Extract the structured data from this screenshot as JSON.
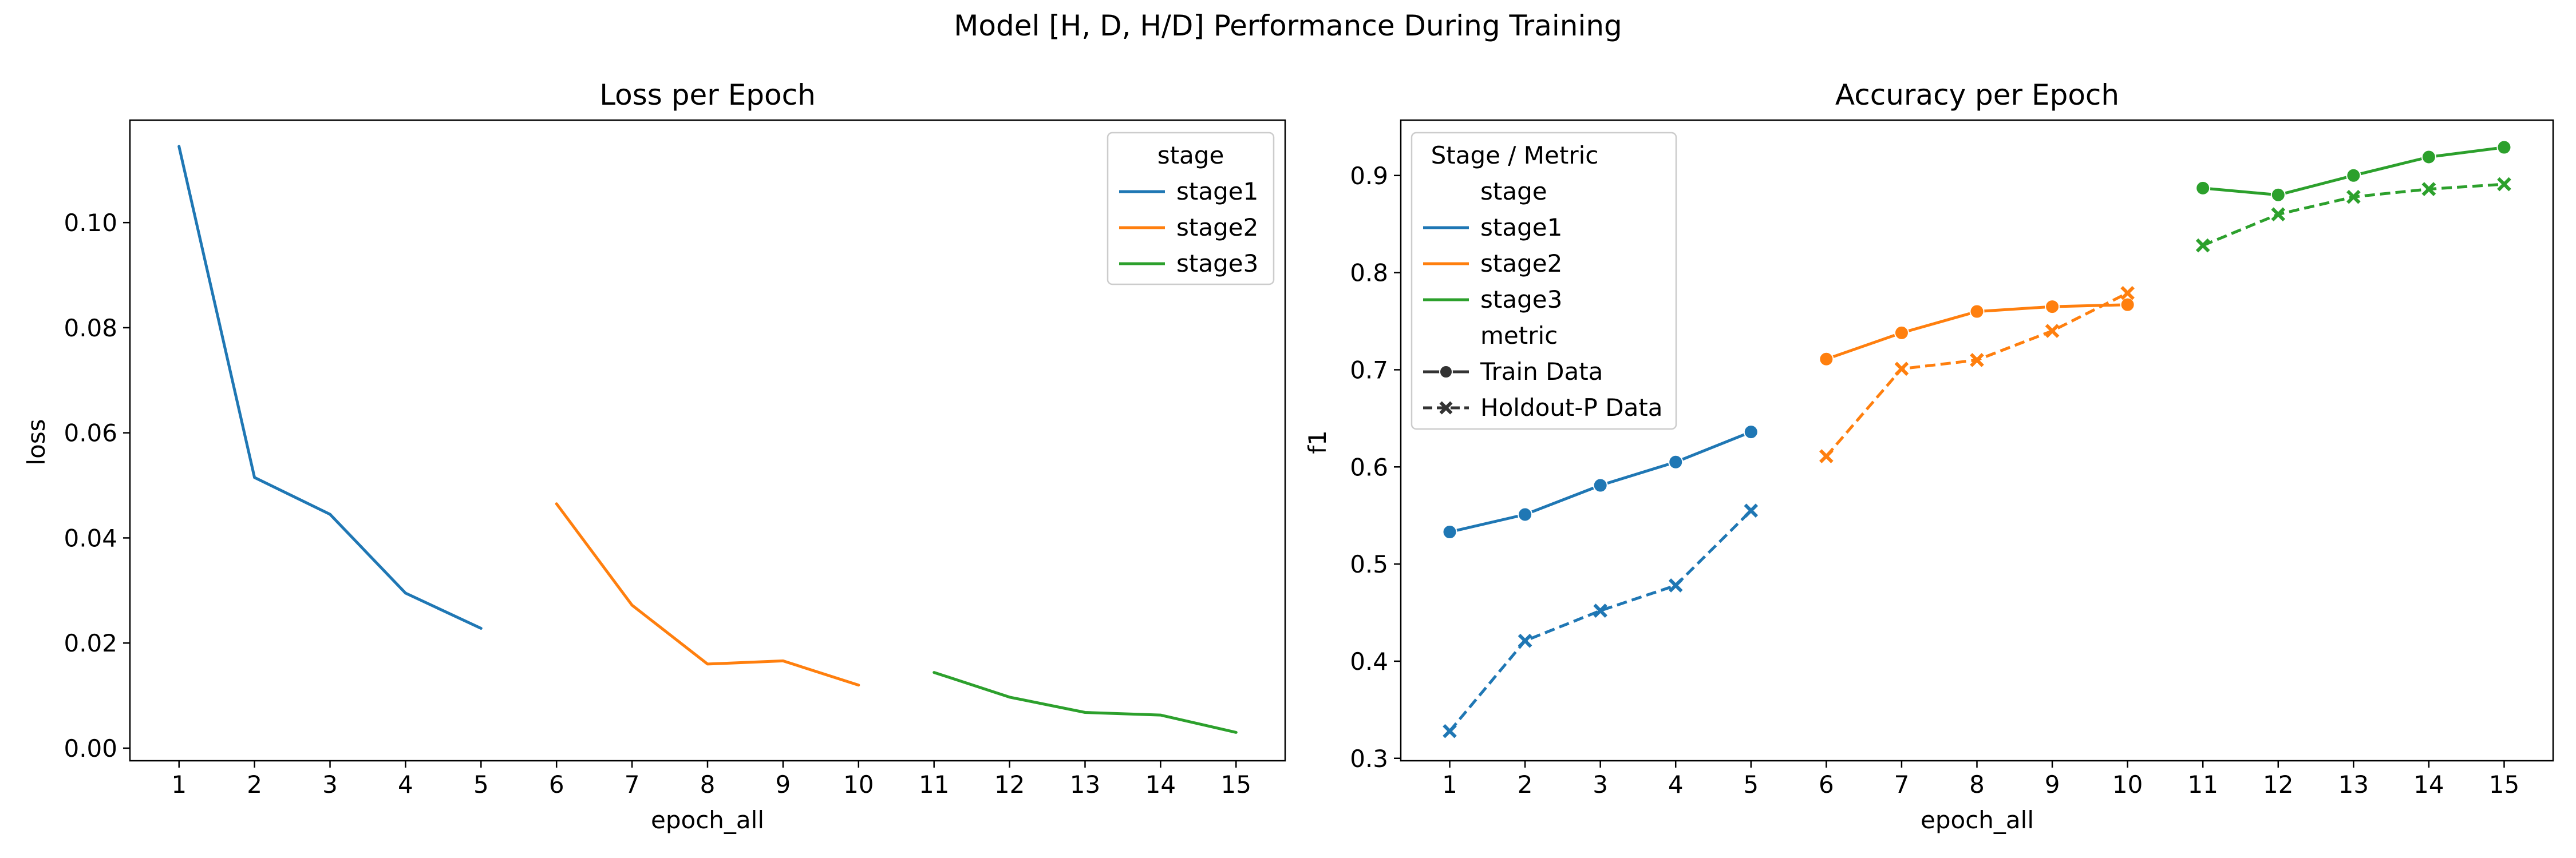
{
  "suptitle": "Model [H, D, H/D] Performance During Training",
  "colors": {
    "stage1": "#1f77b4",
    "stage2": "#ff7f0e",
    "stage3": "#2ca02c"
  },
  "chart_data": [
    {
      "type": "line",
      "title": "Loss per Epoch",
      "xlabel": "epoch_all",
      "ylabel": "loss",
      "xlim": [
        0.35,
        15.65
      ],
      "ylim": [
        -0.0024,
        0.1195
      ],
      "xticks": [
        "1",
        "2",
        "3",
        "4",
        "5",
        "6",
        "7",
        "8",
        "9",
        "10",
        "11",
        "12",
        "13",
        "14",
        "15"
      ],
      "yticks": [
        "0.00",
        "0.02",
        "0.04",
        "0.06",
        "0.08",
        "0.10"
      ],
      "grid": false,
      "legend": {
        "position": "top-right",
        "title": "stage",
        "entries": [
          "stage1",
          "stage2",
          "stage3"
        ]
      },
      "series": [
        {
          "name": "stage1",
          "color": "#1f77b4",
          "x": [
            1,
            2,
            3,
            4,
            5
          ],
          "y": [
            0.1145,
            0.0515,
            0.0445,
            0.0295,
            0.0228
          ]
        },
        {
          "name": "stage2",
          "color": "#ff7f0e",
          "x": [
            6,
            7,
            8,
            9,
            10
          ],
          "y": [
            0.0465,
            0.0272,
            0.016,
            0.0166,
            0.012
          ]
        },
        {
          "name": "stage3",
          "color": "#2ca02c",
          "x": [
            11,
            12,
            13,
            14,
            15
          ],
          "y": [
            0.0144,
            0.0097,
            0.0068,
            0.0063,
            0.003
          ]
        }
      ]
    },
    {
      "type": "line",
      "title": "Accuracy per Epoch",
      "xlabel": "epoch_all",
      "ylabel": "f1",
      "xlim": [
        0.35,
        15.65
      ],
      "ylim": [
        0.2975,
        0.957
      ],
      "xticks": [
        "1",
        "2",
        "3",
        "4",
        "5",
        "6",
        "7",
        "8",
        "9",
        "10",
        "11",
        "12",
        "13",
        "14",
        "15"
      ],
      "yticks": [
        "0.3",
        "0.4",
        "0.5",
        "0.6",
        "0.7",
        "0.8",
        "0.9"
      ],
      "grid": false,
      "legend": {
        "position": "top-left",
        "title": "Stage / Metric",
        "entries": [
          "stage",
          "stage1",
          "stage2",
          "stage3",
          "metric",
          "Train Data",
          "Holdout-P Data"
        ]
      },
      "series": [
        {
          "name": "stage1",
          "metric": "Train Data",
          "color": "#1f77b4",
          "marker": "circle",
          "dashed": false,
          "x": [
            1,
            2,
            3,
            4,
            5
          ],
          "y": [
            0.533,
            0.551,
            0.581,
            0.605,
            0.636
          ]
        },
        {
          "name": "stage1",
          "metric": "Holdout-P Data",
          "color": "#1f77b4",
          "marker": "x",
          "dashed": true,
          "x": [
            1,
            2,
            3,
            4,
            5
          ],
          "y": [
            0.328,
            0.421,
            0.452,
            0.478,
            0.555
          ]
        },
        {
          "name": "stage2",
          "metric": "Train Data",
          "color": "#ff7f0e",
          "marker": "circle",
          "dashed": false,
          "x": [
            6,
            7,
            8,
            9,
            10
          ],
          "y": [
            0.711,
            0.738,
            0.76,
            0.765,
            0.767
          ]
        },
        {
          "name": "stage2",
          "metric": "Holdout-P Data",
          "color": "#ff7f0e",
          "marker": "x",
          "dashed": true,
          "x": [
            6,
            7,
            8,
            9,
            10
          ],
          "y": [
            0.611,
            0.701,
            0.71,
            0.74,
            0.779
          ]
        },
        {
          "name": "stage3",
          "metric": "Train Data",
          "color": "#2ca02c",
          "marker": "circle",
          "dashed": false,
          "x": [
            11,
            12,
            13,
            14,
            15
          ],
          "y": [
            0.887,
            0.88,
            0.9,
            0.919,
            0.929
          ]
        },
        {
          "name": "stage3",
          "metric": "Holdout-P Data",
          "color": "#2ca02c",
          "marker": "x",
          "dashed": true,
          "x": [
            11,
            12,
            13,
            14,
            15
          ],
          "y": [
            0.828,
            0.86,
            0.878,
            0.886,
            0.891
          ]
        }
      ]
    }
  ]
}
